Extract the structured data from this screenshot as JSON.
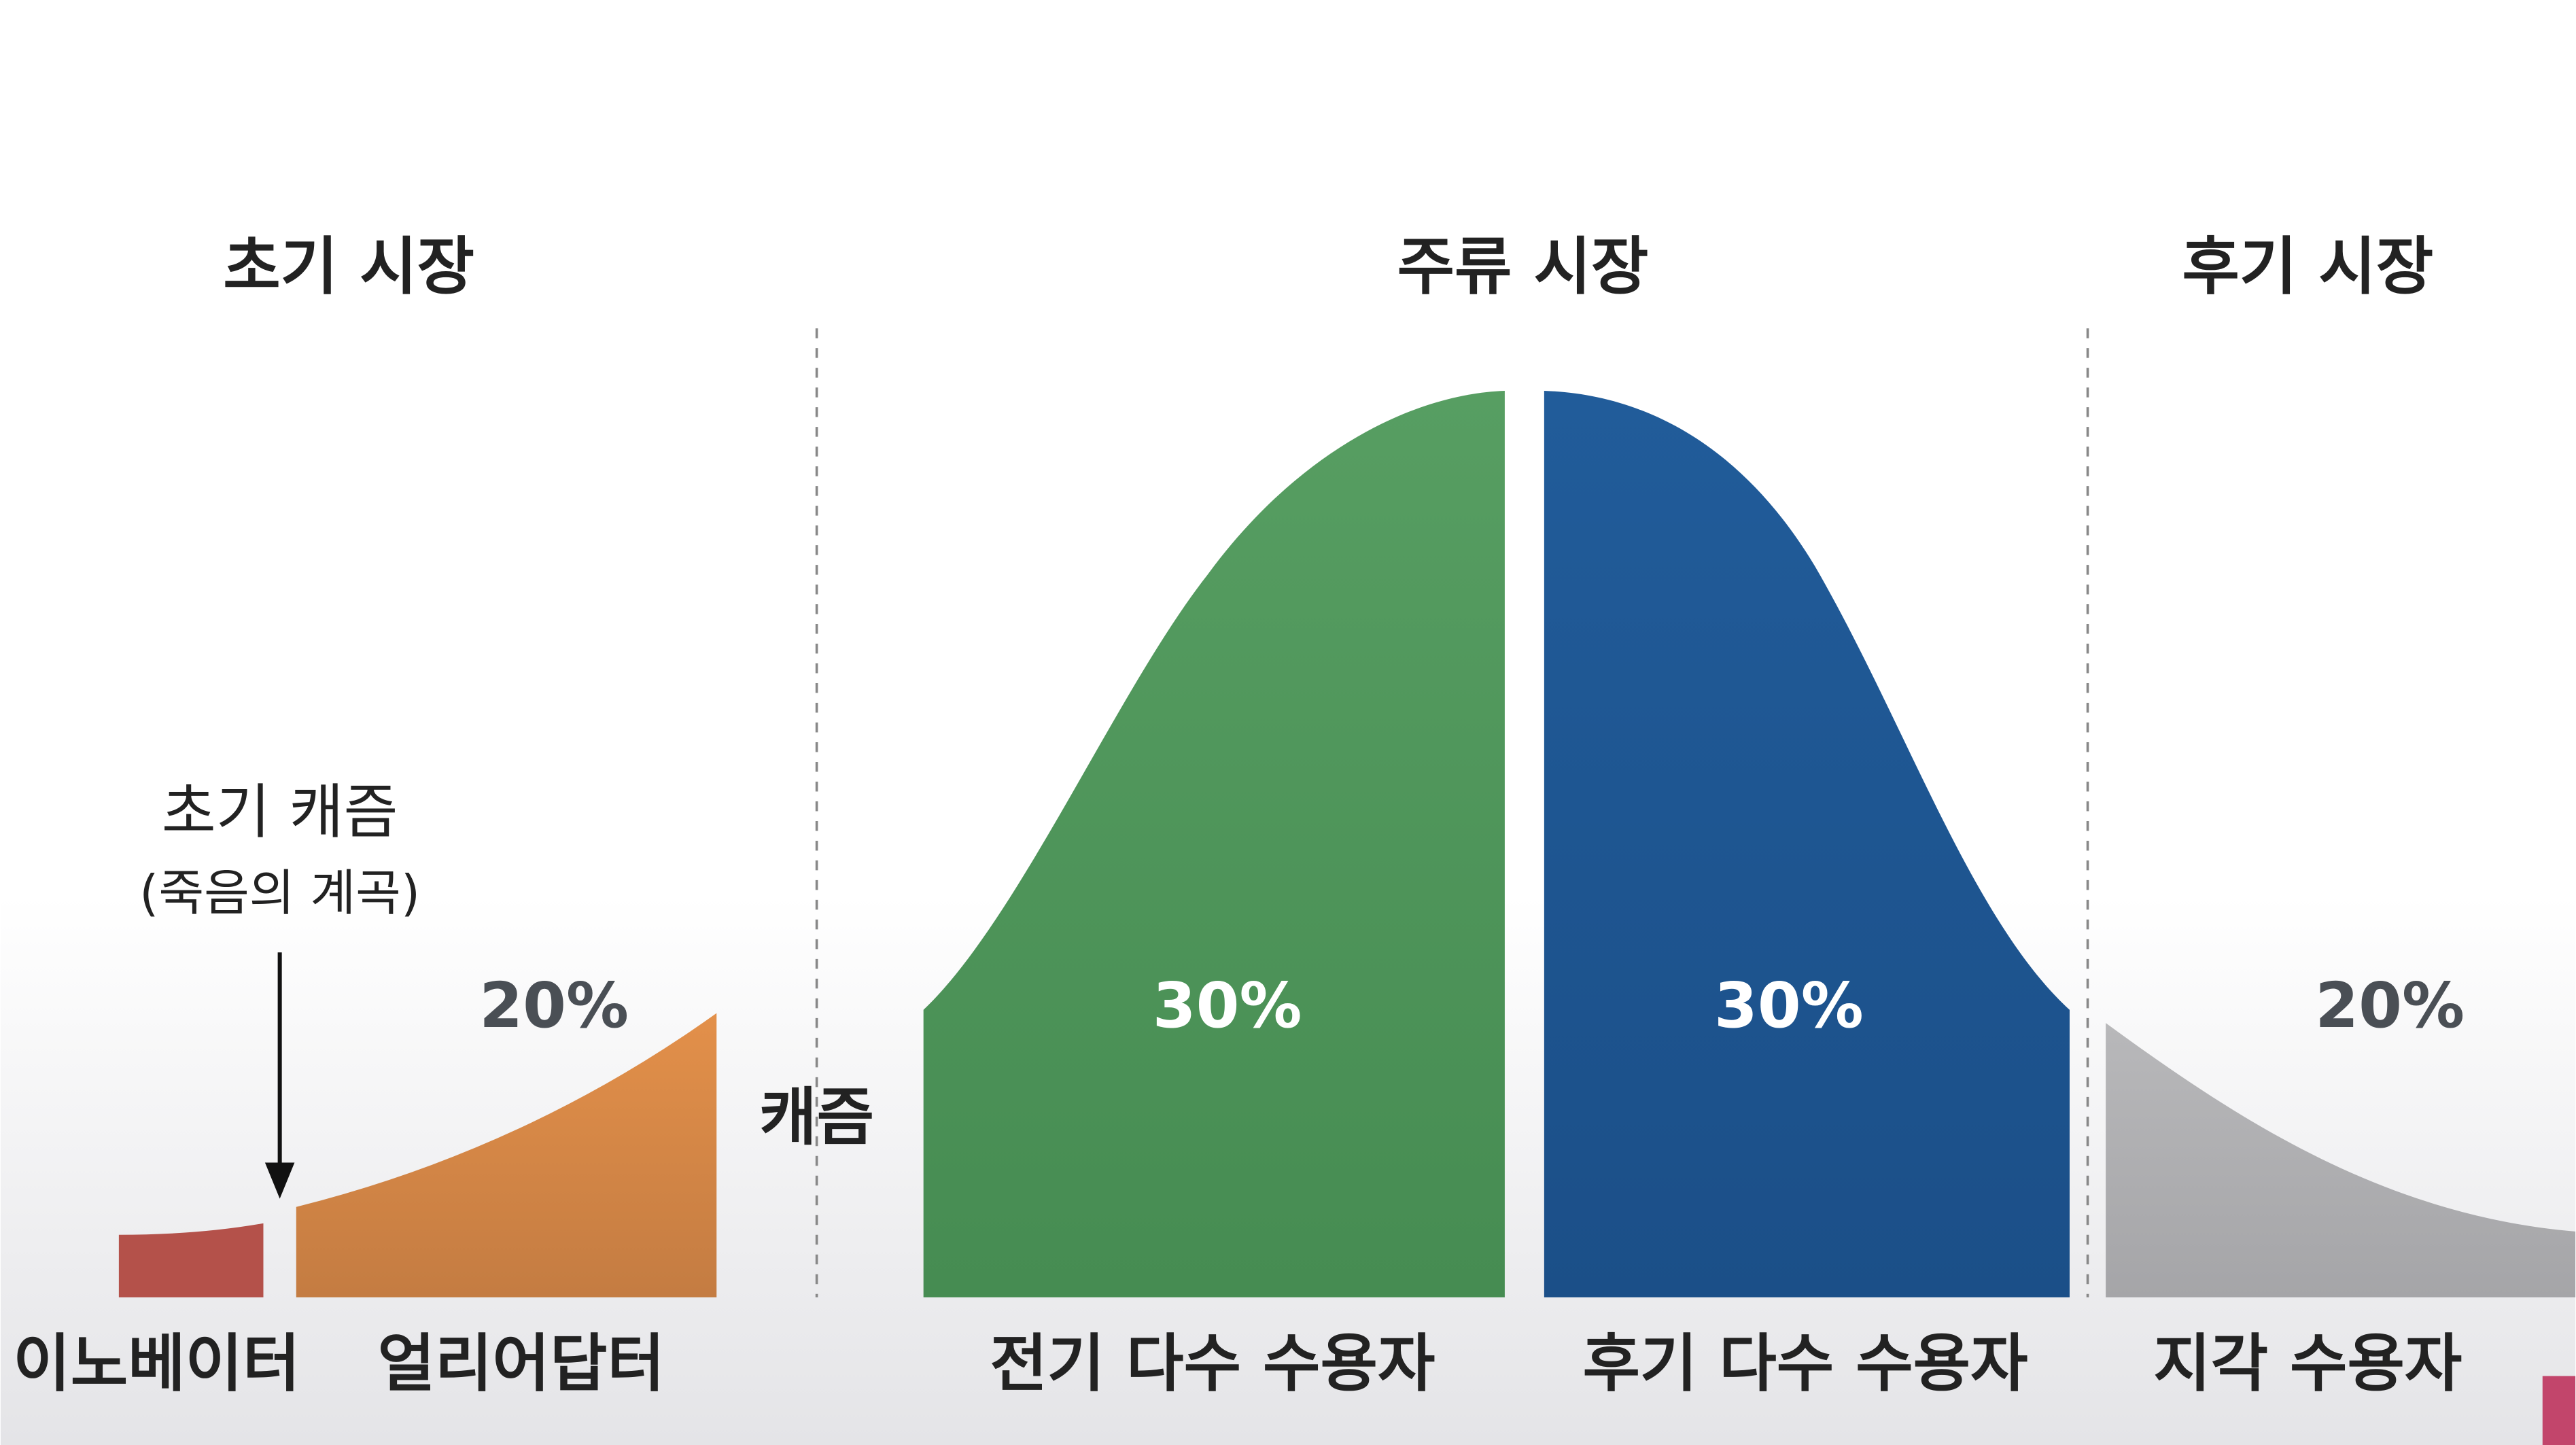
{
  "sections": [
    {
      "label": "초기 시장"
    },
    {
      "label": "주류 시장"
    },
    {
      "label": "후기 시장"
    }
  ],
  "early_chasm": {
    "title": "초기 캐즘",
    "subtitle": "(죽음의 계곡)"
  },
  "chasm_label": "캐즘",
  "segments": [
    {
      "label": "이노베이터"
    },
    {
      "label": "얼리어답터",
      "share": "20%"
    },
    {
      "label": "전기 다수 수용자",
      "share": "30%"
    },
    {
      "label": "후기 다수 수용자",
      "share": "30%"
    },
    {
      "label": "지각 수용자",
      "share": "20%"
    }
  ]
}
